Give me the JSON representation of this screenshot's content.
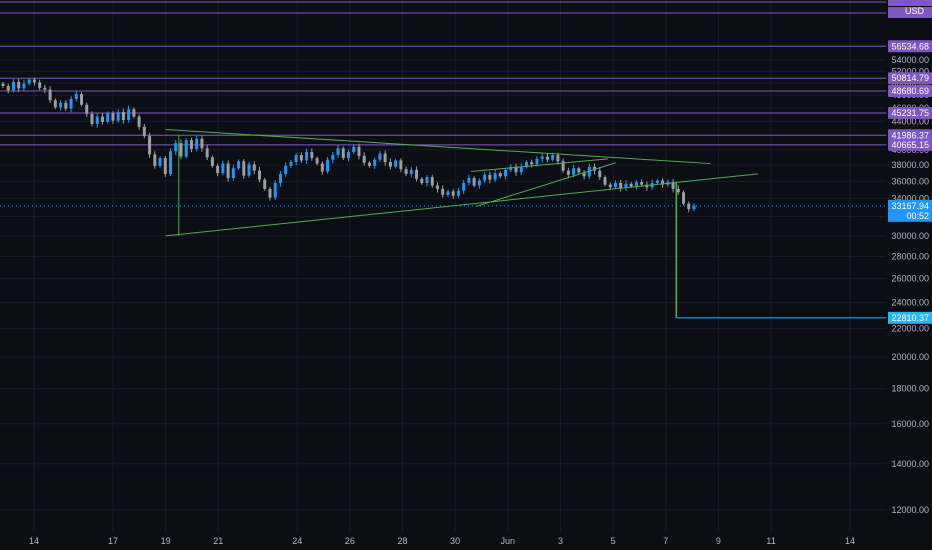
{
  "chart_data": {
    "type": "candlestick",
    "currency": "USD",
    "y_ticks": [
      12000,
      14000,
      16000,
      18000,
      20000,
      22000,
      24000,
      26000,
      28000,
      30000,
      32000,
      34000,
      36000,
      38000,
      40000,
      42000,
      44000,
      46000,
      48000,
      50000,
      52000,
      54000
    ],
    "y_tick_labels": [
      "12000.00",
      "14000.00",
      "16000.00",
      "18000.00",
      "20000.00",
      "22000.00",
      "24000.00",
      "26000.00",
      "28000.00",
      "30000.00",
      "32000.00",
      "34000.00",
      "36000.00",
      "38000.00",
      "40000.00",
      "42000.00",
      "44000.00",
      "46000.00",
      "48000.00",
      "50000.00",
      "52000.00",
      "54000.00"
    ],
    "x_ticks": [
      {
        "label": "14",
        "day": 0
      },
      {
        "label": "17",
        "day": 3
      },
      {
        "label": "19",
        "day": 5
      },
      {
        "label": "21",
        "day": 7
      },
      {
        "label": "24",
        "day": 10
      },
      {
        "label": "26",
        "day": 12
      },
      {
        "label": "28",
        "day": 14
      },
      {
        "label": "30",
        "day": 16
      },
      {
        "label": "Jun",
        "day": 18
      },
      {
        "label": "3",
        "day": 20
      },
      {
        "label": "5",
        "day": 22
      },
      {
        "label": "7",
        "day": 24
      },
      {
        "label": "9",
        "day": 26
      },
      {
        "label": "11",
        "day": 28
      },
      {
        "label": "14",
        "day": 31
      }
    ],
    "horizontal_levels": [
      {
        "label": "56534.68",
        "value": 56534.68,
        "color": "#7e57c2"
      },
      {
        "label": "50814.79",
        "value": 50814.79,
        "color": "#7e57c2"
      },
      {
        "label": "48680.69",
        "value": 48680.69,
        "color": "#7e57c2"
      },
      {
        "label": "45231.75",
        "value": 45231.75,
        "color": "#7e57c2"
      },
      {
        "label": "41986.37",
        "value": 41986.37,
        "color": "#7e57c2"
      },
      {
        "label": "40665.15",
        "value": 40665.15,
        "color": "#7e57c2"
      }
    ],
    "current_price": {
      "label": "33167.94",
      "value": 33167.94,
      "countdown": "00:52",
      "color": "#2196f3"
    },
    "target_price": {
      "label": "22810.37",
      "value": 22810.37,
      "color": "#29b6f6"
    },
    "trendlines": [
      {
        "from": {
          "day": 5.0,
          "value": 42800
        },
        "to": {
          "day": 25.7,
          "value": 38200
        }
      },
      {
        "from": {
          "day": 5.0,
          "value": 30000
        },
        "to": {
          "day": 27.5,
          "value": 36900
        }
      },
      {
        "from": {
          "day": 16.6,
          "value": 37200
        },
        "to": {
          "day": 21.8,
          "value": 38800
        }
      },
      {
        "from": {
          "day": 16.8,
          "value": 33100
        },
        "to": {
          "day": 22.1,
          "value": 38300
        }
      }
    ],
    "measure_line": {
      "from": {
        "day": 24.4,
        "value": 35800
      },
      "to": {
        "day": 24.4,
        "value": 22810.37
      },
      "end_day": 32.3
    },
    "pattern_vertical": {
      "day": 5.5,
      "from_value": 42000,
      "to_value": 30000
    },
    "candles_close": [
      49500,
      48800,
      50200,
      49100,
      49900,
      50600,
      50100,
      49200,
      48900,
      47200,
      46100,
      46800,
      45900,
      47400,
      48200,
      46500,
      45100,
      43600,
      44700,
      43900,
      45200,
      44100,
      45400,
      44200,
      45800,
      44700,
      43200,
      41900,
      39400,
      37900,
      38900,
      36900,
      39800,
      40900,
      39100,
      41300,
      40100,
      41500,
      40200,
      39000,
      37900,
      37000,
      38200,
      36400,
      37600,
      38500,
      36700,
      38100,
      37300,
      36200,
      35100,
      34100,
      35800,
      36900,
      37900,
      38400,
      39300,
      38600,
      39700,
      38900,
      38200,
      37200,
      38700,
      39300,
      40200,
      38900,
      39700,
      40400,
      39200,
      38300,
      37900,
      38700,
      39500,
      38400,
      37800,
      38600,
      37500,
      36900,
      37400,
      36300,
      35800,
      36500,
      35500,
      35100,
      34400,
      34800,
      34300,
      34900,
      35800,
      36400,
      35500,
      36100,
      36800,
      36200,
      37000,
      36600,
      37400,
      37800,
      37100,
      37800,
      38400,
      38100,
      38800,
      39100,
      38700,
      39300,
      38500,
      37300,
      36800,
      37600,
      37100,
      36600,
      37800,
      37300,
      36500,
      35600,
      35300,
      35800,
      35200,
      35700,
      35400,
      35900,
      35600,
      35300,
      35800,
      36100,
      35600,
      35900,
      35100,
      34700,
      33400,
      32800,
      33167.94
    ]
  }
}
